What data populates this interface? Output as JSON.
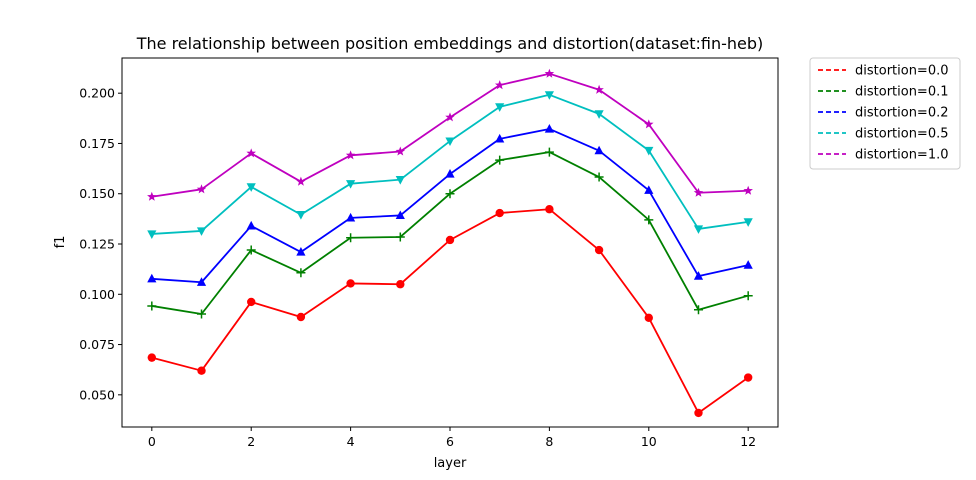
{
  "chart_data": {
    "type": "line",
    "title": "The relationship between position embeddings and distortion(dataset:fin-heb)",
    "xlabel": "layer",
    "ylabel": "f1",
    "xlim": [
      -0.6,
      12.6
    ],
    "ylim": [
      0.034,
      0.2175
    ],
    "xticks": [
      0,
      2,
      4,
      6,
      8,
      10,
      12
    ],
    "yticks": [
      0.05,
      0.075,
      0.1,
      0.125,
      0.15,
      0.175,
      0.2
    ],
    "ytick_labels": [
      "0.050",
      "0.075",
      "0.100",
      "0.125",
      "0.150",
      "0.175",
      "0.200"
    ],
    "grid": false,
    "legend_position": "outside-top-right",
    "x": [
      0,
      1,
      2,
      3,
      4,
      5,
      6,
      7,
      8,
      9,
      10,
      11,
      12
    ],
    "series": [
      {
        "name": "distortion=0.0",
        "color": "#ff0000",
        "marker": "circle",
        "values": [
          0.0685,
          0.062,
          0.0962,
          0.0887,
          0.1054,
          0.105,
          0.127,
          0.1404,
          0.1423,
          0.122,
          0.0883,
          0.041,
          0.0586
        ]
      },
      {
        "name": "distortion=0.1",
        "color": "#008000",
        "marker": "plus",
        "values": [
          0.0942,
          0.0902,
          0.122,
          0.1107,
          0.1281,
          0.1285,
          0.15,
          0.1667,
          0.1707,
          0.1583,
          0.137,
          0.0923,
          0.0993
        ]
      },
      {
        "name": "distortion=0.2",
        "color": "#0000ff",
        "marker": "triangle-up",
        "values": [
          0.1077,
          0.106,
          0.134,
          0.121,
          0.138,
          0.1392,
          0.1598,
          0.1773,
          0.1822,
          0.1714,
          0.1517,
          0.109,
          0.1145
        ]
      },
      {
        "name": "distortion=0.5",
        "color": "#00bfbf",
        "marker": "triangle-down",
        "values": [
          0.13,
          0.1315,
          0.1534,
          0.1396,
          0.155,
          0.157,
          0.1762,
          0.1932,
          0.1992,
          0.1897,
          0.1715,
          0.1325,
          0.136
        ]
      },
      {
        "name": "distortion=1.0",
        "color": "#bf00bf",
        "marker": "star",
        "values": [
          0.1485,
          0.1522,
          0.1701,
          0.156,
          0.1691,
          0.171,
          0.188,
          0.204,
          0.2097,
          0.2017,
          0.1845,
          0.1505,
          0.1515
        ]
      }
    ]
  }
}
